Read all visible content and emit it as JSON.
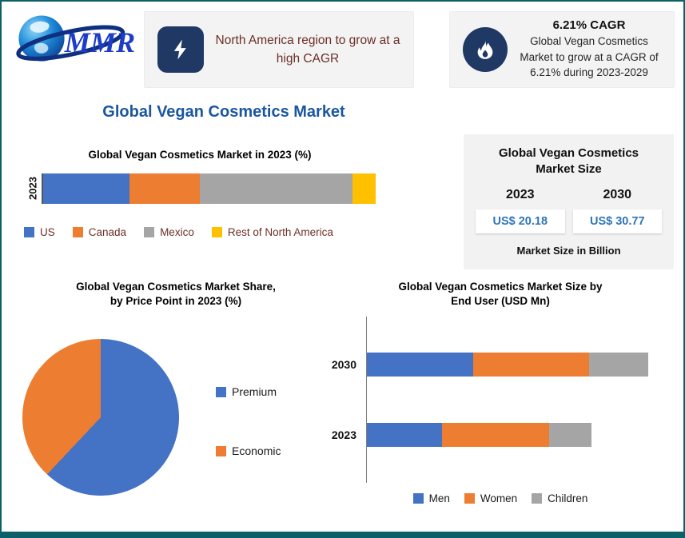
{
  "logo": {
    "text": "MMR"
  },
  "main_title": "Global Vegan Cosmetics Market",
  "callouts": {
    "left": {
      "icon": "lightning-icon",
      "text": "North America region to grow at a high CAGR"
    },
    "right": {
      "icon": "flame-icon",
      "heading": "6.21% CAGR",
      "text": "Global Vegan Cosmetics Market to grow at a CAGR of 6.21% during 2023-2029"
    }
  },
  "market_size_box": {
    "title": "Global Vegan Cosmetics Market Size",
    "columns": [
      {
        "year": "2023",
        "value": "US$ 20.18"
      },
      {
        "year": "2030",
        "value": "US$ 30.77"
      }
    ],
    "footnote": "Market Size in Billion",
    "value_color": "#2e75b6"
  },
  "colors": {
    "border_teal": "#0c6168",
    "heading_blue": "#1a57a0",
    "callout_text_maroon": "#6b2f26",
    "icon_navy": "#1f3864",
    "value_blue": "#2e75b6"
  },
  "chart_data": [
    {
      "type": "bar",
      "orientation": "horizontal-stacked",
      "title": "Global Vegan Cosmetics Market in 2023 (%)",
      "categories": [
        "2023"
      ],
      "series": [
        {
          "name": "US",
          "color": "#4472c4",
          "values": [
            26
          ]
        },
        {
          "name": "Canada",
          "color": "#ed7d31",
          "values": [
            21
          ]
        },
        {
          "name": "Mexico",
          "color": "#a5a5a5",
          "values": [
            46
          ]
        },
        {
          "name": "Rest of North America",
          "color": "#ffc000",
          "values": [
            7
          ]
        }
      ],
      "x_max": 100,
      "xlabel": "",
      "ylabel": "2023",
      "legend_position": "bottom",
      "grid": false
    },
    {
      "type": "pie",
      "title_line1": "Global Vegan Cosmetics Market Share,",
      "title_line2": "by Price Point in 2023 (%)",
      "slices": [
        {
          "name": "Premium",
          "color": "#4472c4",
          "value": 62
        },
        {
          "name": "Economic",
          "color": "#ed7d31",
          "value": 38
        }
      ],
      "legend_position": "right"
    },
    {
      "type": "bar",
      "orientation": "horizontal-stacked",
      "title_line1": "Global Vegan Cosmetics Market Size by",
      "title_line2": "End User (USD Mn)",
      "categories": [
        "2030",
        "2023"
      ],
      "series": [
        {
          "name": "Men",
          "color": "#4472c4",
          "values": [
            38,
            27
          ]
        },
        {
          "name": "Women",
          "color": "#ed7d31",
          "values": [
            41,
            38
          ]
        },
        {
          "name": "Children",
          "color": "#a5a5a5",
          "values": [
            21,
            15
          ]
        }
      ],
      "x_max": 100,
      "value_note": "axis unlabeled; values estimated as percent of the 2030 bar total",
      "legend_position": "bottom",
      "grid": false
    }
  ]
}
